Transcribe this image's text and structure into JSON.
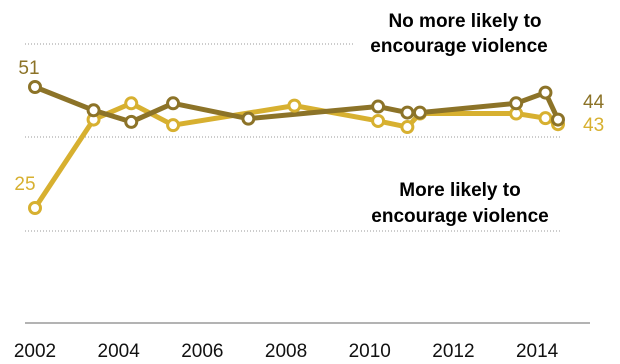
{
  "chart_data": {
    "type": "line",
    "x": [
      2002,
      2003.4,
      2004.3,
      2005.3,
      2007.1,
      2008.2,
      2010.2,
      2010.9,
      2011.2,
      2013.5,
      2014.2,
      2014.5
    ],
    "series": [
      {
        "name": "No more likely to encourage violence",
        "color": "#8c7328",
        "points": [
          [
            2002,
            51
          ],
          [
            2003.4,
            46
          ],
          [
            2004.3,
            43.5
          ],
          [
            2005.3,
            47.5
          ],
          [
            2007.1,
            44.2
          ],
          [
            2010.2,
            46.8
          ],
          [
            2010.9,
            45.5
          ],
          [
            2011.2,
            45.5
          ],
          [
            2013.5,
            47.5
          ],
          [
            2014.2,
            49.8
          ],
          [
            2014.5,
            44
          ]
        ],
        "start_label": "51",
        "end_label": "44"
      },
      {
        "name": "More likely to encourage violence",
        "color": "#d7b030",
        "points": [
          [
            2002,
            25
          ],
          [
            2003.4,
            44
          ],
          [
            2004.3,
            47.5
          ],
          [
            2005.3,
            42.8
          ],
          [
            2008.2,
            47
          ],
          [
            2010.2,
            43.7
          ],
          [
            2010.9,
            42.4
          ],
          [
            2011.2,
            45.3
          ],
          [
            2013.5,
            45.3
          ],
          [
            2014.2,
            44.3
          ],
          [
            2014.5,
            43
          ]
        ],
        "start_label": "25",
        "end_label": "43"
      }
    ],
    "x_ticks": [
      "2002",
      "2004",
      "2006",
      "2008",
      "2010",
      "2012",
      "2014"
    ],
    "x_tick_values": [
      2002,
      2004,
      2006,
      2008,
      2010,
      2012,
      2014
    ],
    "xlim": [
      2002,
      2014.5
    ],
    "ylim": [
      25,
      51
    ],
    "grid": true,
    "grid_style": "dotted",
    "series_labels": {
      "no_more_likely_line1": "No more likely to",
      "no_more_likely_line2": "encourage violence",
      "more_likely_line1": "More likely to",
      "more_likely_line2": "encourage violence"
    }
  }
}
